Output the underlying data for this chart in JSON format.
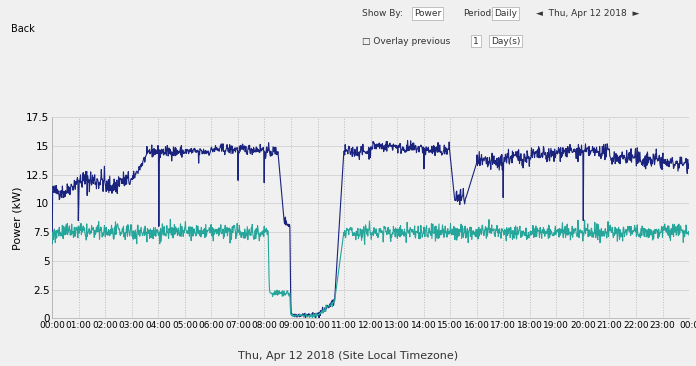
{
  "title": "Thu, Apr 12 2018 (Site Local Timezone)",
  "ylabel": "Power (kW)",
  "ylim": [
    0,
    17.5
  ],
  "yticks": [
    0,
    2.5,
    5,
    7.5,
    10,
    12.5,
    15,
    17.5
  ],
  "ytick_labels": [
    "0",
    "2.5",
    "5",
    "7.5",
    "10",
    "12.5",
    "15",
    "17.5"
  ],
  "xlim": [
    0,
    1440
  ],
  "xtick_positions": [
    0,
    60,
    120,
    180,
    240,
    300,
    360,
    420,
    480,
    540,
    600,
    660,
    720,
    780,
    840,
    900,
    960,
    1020,
    1080,
    1140,
    1200,
    1260,
    1320,
    1380,
    1440
  ],
  "xtick_labels": [
    "00:00",
    "01:00",
    "02:00",
    "03:00",
    "04:00",
    "05:00",
    "06:00",
    "07:00",
    "08:00",
    "09:00",
    "10:00",
    "11:00",
    "12:00",
    "13:00",
    "14:00",
    "15:00",
    "16:00",
    "17:00",
    "18:00",
    "19:00",
    "20:00",
    "21:00",
    "22:00",
    "23:00",
    "00:0"
  ],
  "bg_color": "#f0f0f0",
  "plot_bg_color": "#f0f0f0",
  "blue_color": "#1a237e",
  "green_color": "#26a69a",
  "grid_color": "#cccccc",
  "header_bg": "#e0e0e0",
  "back_btn_color": "#8db870",
  "ui_text_color": "#444444"
}
